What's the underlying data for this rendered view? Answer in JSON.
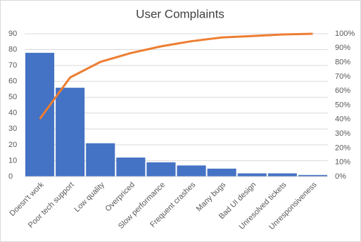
{
  "chart_data": {
    "type": "pareto",
    "title": "User Complaints",
    "categories": [
      "Doesn't work",
      "Poor tech support",
      "Low quality",
      "Overpriced",
      "Slow performance",
      "Frequent crashes",
      "Many bugs",
      "Bad UI design",
      "Unresolved tickets",
      "Unresponsiveness"
    ],
    "series": [
      {
        "type": "bar",
        "color": "#4472c4",
        "values": [
          78,
          56,
          21,
          12,
          9,
          7,
          5,
          2,
          2,
          1
        ]
      },
      {
        "type": "line",
        "color": "#ed7d31",
        "axis": "y2",
        "values": [
          40.4,
          69.4,
          80.3,
          86.5,
          91.2,
          94.8,
          97.4,
          98.4,
          99.5,
          100
        ]
      }
    ],
    "ylim": [
      0,
      90
    ],
    "yticks": [
      0,
      10,
      20,
      30,
      40,
      50,
      60,
      70,
      80,
      90
    ],
    "y2lim": [
      0,
      100
    ],
    "y2ticks": [
      {
        "value": 0,
        "label": "0%"
      },
      {
        "value": 10,
        "label": "10%"
      },
      {
        "value": 20,
        "label": "20%"
      },
      {
        "value": 30,
        "label": "30%"
      },
      {
        "value": 40,
        "label": "40%"
      },
      {
        "value": 50,
        "label": "50%"
      },
      {
        "value": 60,
        "label": "60%"
      },
      {
        "value": 70,
        "label": "70%"
      },
      {
        "value": 80,
        "label": "80%"
      },
      {
        "value": 90,
        "label": "90%"
      },
      {
        "value": 100,
        "label": "100%"
      }
    ],
    "grid": true
  }
}
